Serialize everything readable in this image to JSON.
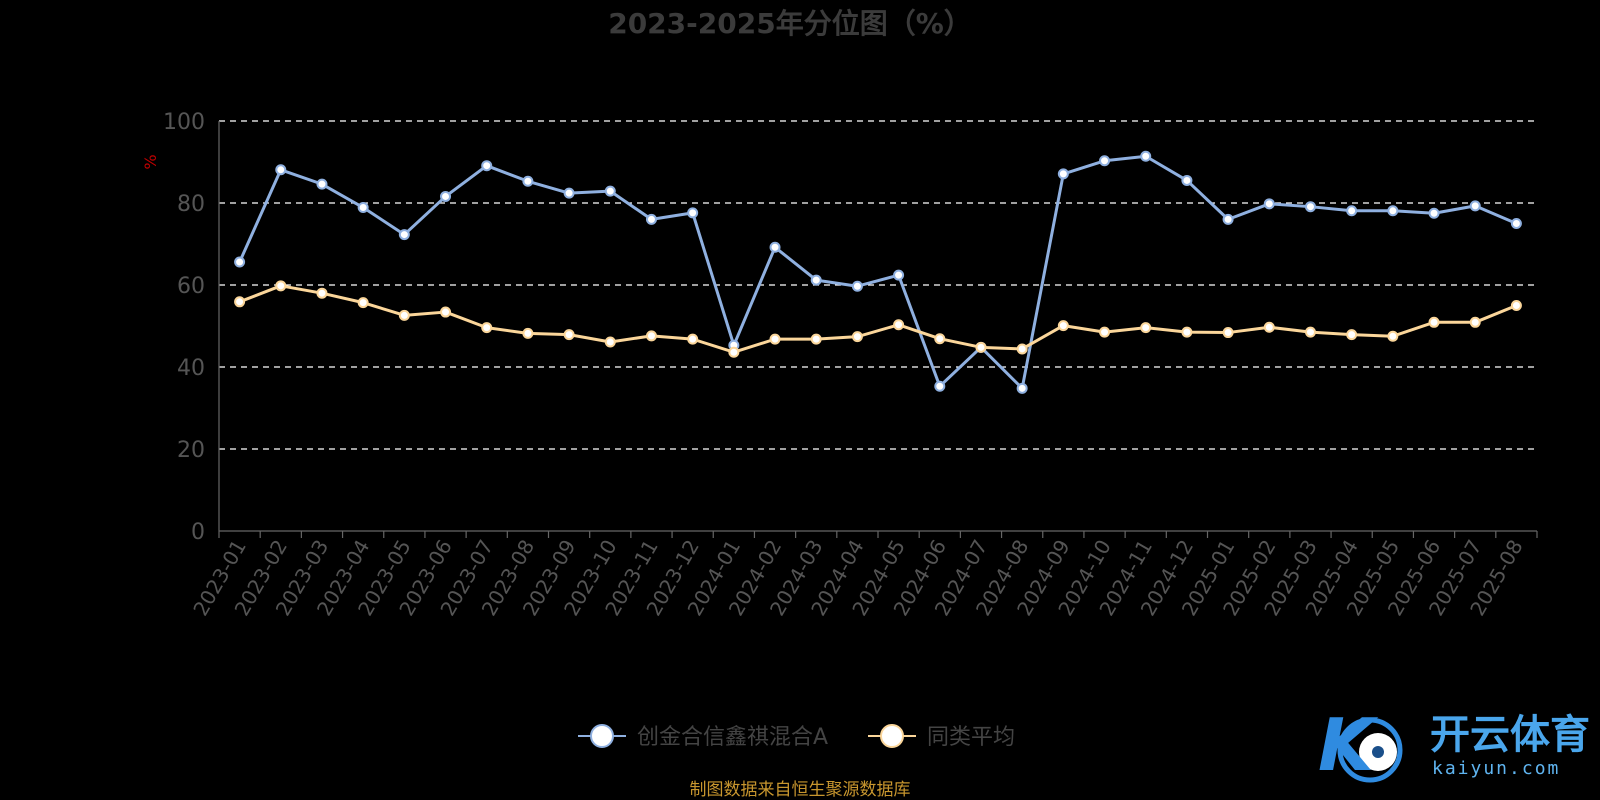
{
  "chart_data": {
    "type": "line",
    "title": "2023-2025年分位图（%）",
    "ylabel": "%",
    "ylim": [
      0,
      100
    ],
    "yticks": [
      0,
      20,
      40,
      60,
      80,
      100
    ],
    "grid": true,
    "legend_position": "bottom-center",
    "categories": [
      "2023-01",
      "2023-02",
      "2023-03",
      "2023-04",
      "2023-05",
      "2023-06",
      "2023-07",
      "2023-08",
      "2023-09",
      "2023-10",
      "2023-11",
      "2023-12",
      "2024-01",
      "2024-02",
      "2024-03",
      "2024-04",
      "2024-05",
      "2024-06",
      "2024-07",
      "2024-08",
      "2024-09",
      "2024-10",
      "2024-11",
      "2024-12",
      "2025-01",
      "2025-02",
      "2025-03",
      "2025-04",
      "2025-05",
      "2025-06",
      "2025-07",
      "2025-08"
    ],
    "series": [
      {
        "name": "创金合信鑫祺混合A",
        "color": "#8fb0e0",
        "values": [
          65.6,
          88.1,
          84.6,
          78.9,
          72.3,
          81.6,
          89.1,
          85.3,
          82.4,
          82.9,
          76.0,
          77.6,
          45.3,
          69.2,
          61.2,
          59.7,
          62.4,
          35.3,
          44.8,
          34.8,
          87.1,
          90.3,
          91.4,
          85.5,
          76.0,
          79.8,
          79.1,
          78.1,
          78.1,
          77.5,
          79.3,
          75.0
        ]
      },
      {
        "name": "同类平均",
        "color": "#fbd69a",
        "values": [
          55.9,
          59.8,
          58.0,
          55.7,
          52.6,
          53.4,
          49.6,
          48.2,
          47.9,
          46.1,
          47.6,
          46.8,
          43.6,
          46.8,
          46.8,
          47.4,
          50.3,
          46.9,
          44.8,
          44.4,
          50.1,
          48.5,
          49.6,
          48.5,
          48.4,
          49.7,
          48.5,
          47.9,
          47.5,
          50.9,
          50.9,
          55.0
        ]
      }
    ]
  },
  "source_note": "制图数据来自恒生聚源数据库",
  "watermark": {
    "mark": "K",
    "name": "开云体育",
    "domain": "kaiyun.com",
    "color_primary": "#2f8be0",
    "color_secondary": "#6bd0f5"
  }
}
